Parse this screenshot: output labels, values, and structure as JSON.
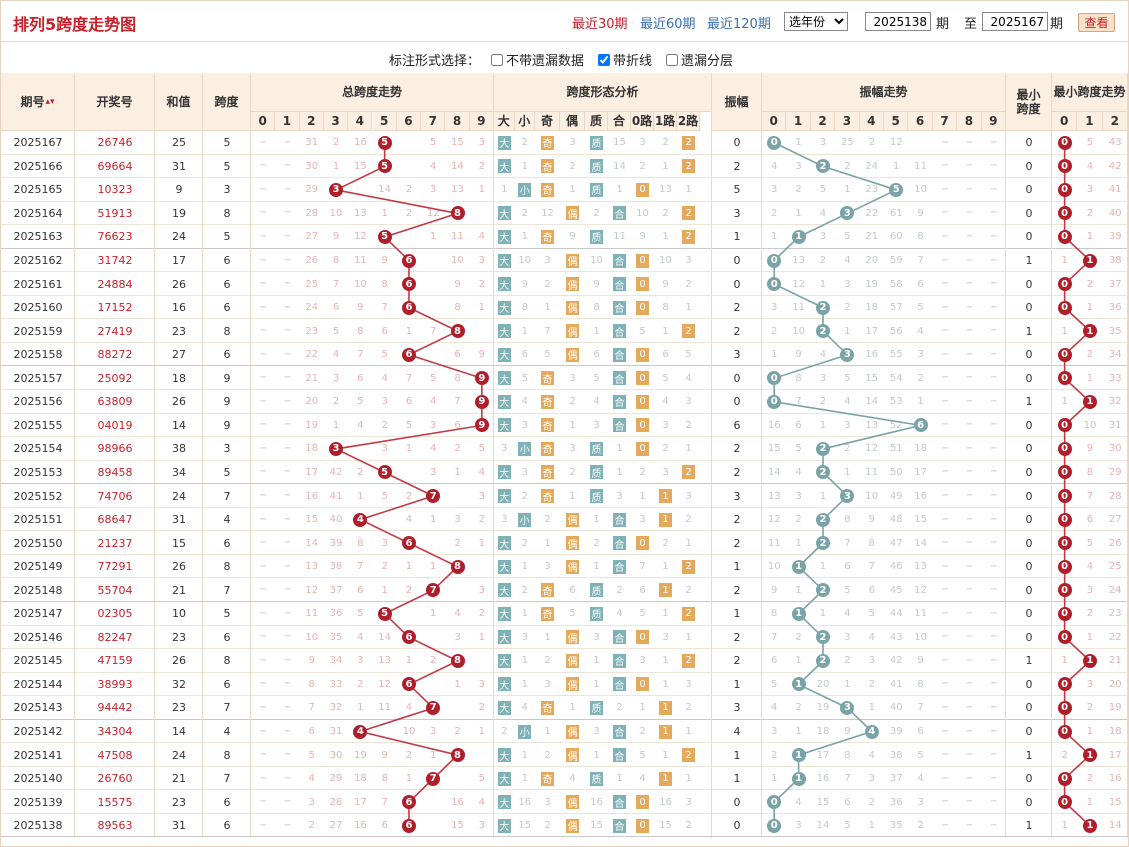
{
  "title": "排列5跨度走势图",
  "periods": [
    "最近30期",
    "最近60期",
    "最近120期"
  ],
  "year_select": "选年份",
  "range": {
    "from": "2025138",
    "to": "2025167",
    "unit": "期",
    "between": "至",
    "button": "查看"
  },
  "options": {
    "label": "标注形式选择：",
    "items": [
      {
        "label": "不带遗漏数据",
        "checked": false
      },
      {
        "label": "带折线",
        "checked": true
      },
      {
        "label": "遗漏分层",
        "checked": false
      }
    ]
  },
  "headers": {
    "issue": "期号",
    "draw": "开奖号",
    "sum": "和值",
    "span": "跨度",
    "span_trend": "总跨度走势",
    "shape": "跨度形态分析",
    "amp": "振幅",
    "amp_trend": "振幅走势",
    "min_span": "最小跨度",
    "min_trend": "最小跨度走势",
    "digits": [
      "0",
      "1",
      "2",
      "3",
      "4",
      "5",
      "6",
      "7",
      "8",
      "9"
    ],
    "shape_cols": [
      "大",
      "小",
      "奇",
      "偶",
      "质",
      "合",
      "0路",
      "1路",
      "2路"
    ],
    "min_digits": [
      "0",
      "1",
      "2"
    ]
  },
  "rows": [
    {
      "issue": "2025167",
      "draw": "26746",
      "sum": "25",
      "span": "5",
      "sm": [
        "31",
        "2",
        "16",
        "",
        "5",
        "15",
        "3",
        "10"
      ],
      "big": true,
      "odd": true,
      "prime": true,
      "road": "2",
      "ro": [
        "3",
        "2",
        "15"
      ],
      "amp": "0",
      "am": [
        "4",
        "1",
        "3",
        "25",
        "2",
        "12",
        "",
        "",
        ""
      ],
      "min": "0",
      "mm": [
        "5",
        "43"
      ]
    },
    {
      "issue": "2025166",
      "draw": "69664",
      "sum": "31",
      "span": "5",
      "sm": [
        "30",
        "1",
        "15",
        "",
        "4",
        "14",
        "2",
        "9"
      ],
      "big": true,
      "odd": true,
      "prime": true,
      "road": "2",
      "ro": [
        "2",
        "1",
        "14"
      ],
      "amp": "2",
      "am": [
        "4",
        "3",
        "",
        "2",
        "24",
        "1",
        "11",
        "",
        ""
      ],
      "min": "0",
      "mm": [
        "4",
        "42"
      ]
    },
    {
      "issue": "2025165",
      "draw": "10323",
      "sum": "9",
      "span": "3",
      "sm": [
        "29",
        "",
        "14",
        "2",
        "3",
        "13",
        "1",
        "8"
      ],
      "big": false,
      "odd": true,
      "prime": true,
      "road": "0",
      "ro": [
        "1",
        "13",
        "1"
      ],
      "amp": "5",
      "am": [
        "3",
        "2",
        "5",
        "1",
        "23",
        "",
        "10",
        "",
        ""
      ],
      "min": "0",
      "mm": [
        "3",
        "41"
      ]
    },
    {
      "issue": "2025164",
      "draw": "51913",
      "sum": "19",
      "span": "8",
      "sm": [
        "28",
        "10",
        "13",
        "1",
        "2",
        "12",
        "",
        "7"
      ],
      "big": true,
      "odd": false,
      "prime": false,
      "road": "2",
      "ro": [
        "10",
        "2",
        "12"
      ],
      "amp": "3",
      "am": [
        "2",
        "1",
        "4",
        "",
        "22",
        "61",
        "9",
        "",
        ""
      ],
      "min": "0",
      "mm": [
        "2",
        "40"
      ]
    },
    {
      "issue": "2025163",
      "draw": "76623",
      "sum": "24",
      "span": "5",
      "sm": [
        "27",
        "9",
        "12",
        "",
        "1",
        "11",
        "4",
        "6"
      ],
      "big": true,
      "odd": true,
      "prime": true,
      "road": "2",
      "ro": [
        "9",
        "1",
        "11"
      ],
      "amp": "1",
      "am": [
        "1",
        "",
        "3",
        "5",
        "21",
        "60",
        "8",
        "",
        ""
      ],
      "min": "0",
      "mm": [
        "1",
        "39"
      ]
    },
    {
      "issue": "2025162",
      "draw": "31742",
      "sum": "17",
      "span": "6",
      "sm": [
        "26",
        "8",
        "11",
        "9",
        "",
        "10",
        "3",
        "5"
      ],
      "big": true,
      "odd": false,
      "prime": false,
      "road": "0",
      "ro": [
        "8",
        "10",
        "3"
      ],
      "amp": "0",
      "am": [
        "",
        "13",
        "2",
        "4",
        "20",
        "59",
        "7",
        "",
        ""
      ],
      "min": "1",
      "mm": [
        "1",
        "38"
      ]
    },
    {
      "issue": "2025161",
      "draw": "24884",
      "sum": "26",
      "span": "6",
      "sm": [
        "25",
        "7",
        "10",
        "8",
        "",
        "9",
        "2",
        "4"
      ],
      "big": true,
      "odd": false,
      "prime": false,
      "road": "0",
      "ro": [
        "7",
        "9",
        "2"
      ],
      "amp": "0",
      "am": [
        "",
        "12",
        "1",
        "3",
        "19",
        "58",
        "6",
        "",
        ""
      ],
      "min": "0",
      "mm": [
        "2",
        "37"
      ]
    },
    {
      "issue": "2025160",
      "draw": "17152",
      "sum": "16",
      "span": "6",
      "sm": [
        "24",
        "6",
        "9",
        "7",
        "",
        "8",
        "1",
        "3"
      ],
      "big": true,
      "odd": false,
      "prime": false,
      "road": "0",
      "ro": [
        "6",
        "8",
        "1"
      ],
      "amp": "2",
      "am": [
        "3",
        "11",
        "",
        "2",
        "18",
        "57",
        "5",
        "",
        ""
      ],
      "min": "0",
      "mm": [
        "1",
        "36"
      ]
    },
    {
      "issue": "2025159",
      "draw": "27419",
      "sum": "23",
      "span": "8",
      "sm": [
        "23",
        "5",
        "8",
        "6",
        "1",
        "7",
        "",
        "2"
      ],
      "big": true,
      "odd": false,
      "prime": false,
      "road": "2",
      "ro": [
        "5",
        "1",
        "7"
      ],
      "amp": "2",
      "am": [
        "2",
        "10",
        "",
        "1",
        "17",
        "56",
        "4",
        "",
        ""
      ],
      "min": "1",
      "mm": [
        "1",
        "35"
      ]
    },
    {
      "issue": "2025158",
      "draw": "88272",
      "sum": "27",
      "span": "6",
      "sm": [
        "22",
        "4",
        "7",
        "5",
        "",
        "6",
        "9",
        "1"
      ],
      "big": true,
      "odd": false,
      "prime": false,
      "road": "0",
      "ro": [
        "4",
        "6",
        "5"
      ],
      "amp": "3",
      "am": [
        "1",
        "9",
        "4",
        "",
        "16",
        "55",
        "3",
        "",
        ""
      ],
      "min": "0",
      "mm": [
        "2",
        "34"
      ]
    },
    {
      "issue": "2025157",
      "draw": "25092",
      "sum": "18",
      "span": "9",
      "sm": [
        "21",
        "3",
        "6",
        "4",
        "7",
        "5",
        "8",
        ""
      ],
      "big": true,
      "odd": true,
      "prime": false,
      "road": "0",
      "ro": [
        "3",
        "5",
        "4"
      ],
      "amp": "0",
      "am": [
        "",
        "8",
        "3",
        "5",
        "15",
        "54",
        "2",
        "",
        ""
      ],
      "min": "0",
      "mm": [
        "1",
        "33"
      ]
    },
    {
      "issue": "2025156",
      "draw": "63809",
      "sum": "26",
      "span": "9",
      "sm": [
        "20",
        "2",
        "5",
        "3",
        "6",
        "4",
        "7",
        ""
      ],
      "big": true,
      "odd": true,
      "prime": false,
      "road": "0",
      "ro": [
        "2",
        "4",
        "3"
      ],
      "amp": "0",
      "am": [
        "",
        "7",
        "2",
        "4",
        "14",
        "53",
        "1",
        "",
        ""
      ],
      "min": "1",
      "mm": [
        "1",
        "32"
      ]
    },
    {
      "issue": "2025155",
      "draw": "04019",
      "sum": "14",
      "span": "9",
      "sm": [
        "19",
        "1",
        "4",
        "2",
        "5",
        "3",
        "6",
        ""
      ],
      "big": true,
      "odd": true,
      "prime": false,
      "road": "0",
      "ro": [
        "1",
        "3",
        "2"
      ],
      "amp": "6",
      "am": [
        "16",
        "6",
        "1",
        "3",
        "13",
        "52",
        "",
        "",
        ""
      ],
      "min": "0",
      "mm": [
        "10",
        "31"
      ]
    },
    {
      "issue": "2025154",
      "draw": "98966",
      "sum": "38",
      "span": "3",
      "sm": [
        "18",
        "",
        "3",
        "1",
        "4",
        "2",
        "5",
        "20"
      ],
      "big": false,
      "odd": true,
      "prime": true,
      "road": "0",
      "ro": [
        "3",
        "2",
        "1"
      ],
      "amp": "2",
      "am": [
        "15",
        "5",
        "",
        "2",
        "12",
        "51",
        "18",
        "",
        ""
      ],
      "min": "0",
      "mm": [
        "9",
        "30"
      ]
    },
    {
      "issue": "2025153",
      "draw": "89458",
      "sum": "34",
      "span": "5",
      "sm": [
        "17",
        "42",
        "2",
        "",
        "3",
        "1",
        "4",
        "19"
      ],
      "big": true,
      "odd": true,
      "prime": true,
      "road": "2",
      "ro": [
        "2",
        "3",
        "1"
      ],
      "amp": "2",
      "am": [
        "14",
        "4",
        "",
        "1",
        "11",
        "50",
        "17",
        "",
        ""
      ],
      "min": "0",
      "mm": [
        "8",
        "29"
      ]
    },
    {
      "issue": "2025152",
      "draw": "74706",
      "sum": "24",
      "span": "7",
      "sm": [
        "16",
        "41",
        "1",
        "5",
        "2",
        "",
        "3",
        "18"
      ],
      "big": true,
      "odd": true,
      "prime": true,
      "road": "1",
      "ro": [
        "1",
        "2",
        "3"
      ],
      "amp": "3",
      "am": [
        "13",
        "3",
        "1",
        "",
        "10",
        "49",
        "16",
        "",
        ""
      ],
      "min": "0",
      "mm": [
        "7",
        "28"
      ]
    },
    {
      "issue": "2025151",
      "draw": "68647",
      "sum": "31",
      "span": "4",
      "sm": [
        "15",
        "40",
        "",
        "4",
        "1",
        "3",
        "2",
        "17"
      ],
      "big": false,
      "odd": false,
      "prime": false,
      "road": "1",
      "ro": [
        "3",
        "1",
        "2"
      ],
      "amp": "2",
      "am": [
        "12",
        "2",
        "",
        "8",
        "9",
        "48",
        "15",
        "",
        ""
      ],
      "min": "0",
      "mm": [
        "6",
        "27"
      ]
    },
    {
      "issue": "2025150",
      "draw": "21237",
      "sum": "15",
      "span": "6",
      "sm": [
        "14",
        "39",
        "8",
        "3",
        "",
        "2",
        "1",
        "16"
      ],
      "big": true,
      "odd": false,
      "prime": false,
      "road": "0",
      "ro": [
        "8",
        "2",
        "1"
      ],
      "amp": "2",
      "am": [
        "11",
        "1",
        "",
        "7",
        "8",
        "47",
        "14",
        "",
        ""
      ],
      "min": "0",
      "mm": [
        "5",
        "26"
      ]
    },
    {
      "issue": "2025149",
      "draw": "77291",
      "sum": "26",
      "span": "8",
      "sm": [
        "13",
        "38",
        "7",
        "2",
        "1",
        "1",
        "",
        "15"
      ],
      "big": true,
      "odd": false,
      "prime": false,
      "road": "2",
      "ro": [
        "7",
        "1",
        "3"
      ],
      "amp": "1",
      "am": [
        "10",
        "",
        "1",
        "6",
        "7",
        "46",
        "13",
        "",
        ""
      ],
      "min": "0",
      "mm": [
        "4",
        "25"
      ]
    },
    {
      "issue": "2025148",
      "draw": "55704",
      "sum": "21",
      "span": "7",
      "sm": [
        "12",
        "37",
        "6",
        "1",
        "2",
        "",
        "3",
        "14"
      ],
      "big": true,
      "odd": true,
      "prime": true,
      "road": "1",
      "ro": [
        "6",
        "2",
        "2"
      ],
      "amp": "2",
      "am": [
        "9",
        "1",
        "",
        "5",
        "6",
        "45",
        "12",
        "",
        ""
      ],
      "min": "0",
      "mm": [
        "3",
        "24"
      ]
    },
    {
      "issue": "2025147",
      "draw": "02305",
      "sum": "10",
      "span": "5",
      "sm": [
        "11",
        "36",
        "5",
        "",
        "1",
        "4",
        "2",
        "13"
      ],
      "big": true,
      "odd": true,
      "prime": true,
      "road": "2",
      "ro": [
        "5",
        "1",
        "4"
      ],
      "amp": "1",
      "am": [
        "8",
        "",
        "1",
        "4",
        "5",
        "44",
        "11",
        "",
        ""
      ],
      "min": "0",
      "mm": [
        "2",
        "23"
      ]
    },
    {
      "issue": "2025146",
      "draw": "82247",
      "sum": "23",
      "span": "6",
      "sm": [
        "10",
        "35",
        "4",
        "14",
        "",
        "3",
        "1",
        "12"
      ],
      "big": true,
      "odd": false,
      "prime": false,
      "road": "0",
      "ro": [
        "4",
        "3",
        "1"
      ],
      "amp": "2",
      "am": [
        "7",
        "2",
        "",
        "3",
        "4",
        "43",
        "10",
        "",
        ""
      ],
      "min": "0",
      "mm": [
        "1",
        "22"
      ]
    },
    {
      "issue": "2025145",
      "draw": "47159",
      "sum": "26",
      "span": "8",
      "sm": [
        "9",
        "34",
        "3",
        "13",
        "1",
        "2",
        "",
        "11"
      ],
      "big": true,
      "odd": false,
      "prime": false,
      "road": "2",
      "ro": [
        "3",
        "1",
        "2"
      ],
      "amp": "2",
      "am": [
        "6",
        "1",
        "",
        "2",
        "3",
        "42",
        "9",
        "",
        ""
      ],
      "min": "1",
      "mm": [
        "1",
        "21"
      ]
    },
    {
      "issue": "2025144",
      "draw": "38993",
      "sum": "32",
      "span": "6",
      "sm": [
        "8",
        "33",
        "2",
        "12",
        "",
        "1",
        "3",
        "10"
      ],
      "big": true,
      "odd": false,
      "prime": false,
      "road": "0",
      "ro": [
        "2",
        "1",
        "3"
      ],
      "amp": "1",
      "am": [
        "5",
        "",
        "20",
        "1",
        "2",
        "41",
        "8",
        "",
        ""
      ],
      "min": "0",
      "mm": [
        "3",
        "20"
      ]
    },
    {
      "issue": "2025143",
      "draw": "94442",
      "sum": "23",
      "span": "7",
      "sm": [
        "7",
        "32",
        "1",
        "11",
        "4",
        "",
        "2",
        "9"
      ],
      "big": true,
      "odd": true,
      "prime": true,
      "road": "1",
      "ro": [
        "1",
        "4",
        "2"
      ],
      "amp": "3",
      "am": [
        "4",
        "2",
        "19",
        "",
        "1",
        "40",
        "7",
        "",
        ""
      ],
      "min": "0",
      "mm": [
        "2",
        "19"
      ]
    },
    {
      "issue": "2025142",
      "draw": "34304",
      "sum": "14",
      "span": "4",
      "sm": [
        "6",
        "31",
        "",
        "10",
        "3",
        "2",
        "1",
        "8"
      ],
      "big": false,
      "odd": false,
      "prime": false,
      "road": "1",
      "ro": [
        "2",
        "3",
        "1"
      ],
      "amp": "4",
      "am": [
        "3",
        "1",
        "18",
        "9",
        "",
        "39",
        "6",
        "",
        ""
      ],
      "min": "0",
      "mm": [
        "1",
        "18"
      ]
    },
    {
      "issue": "2025141",
      "draw": "47508",
      "sum": "24",
      "span": "8",
      "sm": [
        "5",
        "30",
        "19",
        "9",
        "2",
        "1",
        "",
        "7"
      ],
      "big": true,
      "odd": false,
      "prime": false,
      "road": "2",
      "ro": [
        "5",
        "1",
        "2"
      ],
      "amp": "1",
      "am": [
        "2",
        "",
        "17",
        "8",
        "4",
        "38",
        "5",
        "",
        ""
      ],
      "min": "1",
      "mm": [
        "2",
        "17"
      ]
    },
    {
      "issue": "2025140",
      "draw": "26760",
      "sum": "21",
      "span": "7",
      "sm": [
        "4",
        "29",
        "18",
        "8",
        "1",
        "",
        "5",
        "6"
      ],
      "big": true,
      "odd": true,
      "prime": true,
      "road": "1",
      "ro": [
        "4",
        "1",
        "1"
      ],
      "amp": "1",
      "am": [
        "1",
        "",
        "16",
        "7",
        "3",
        "37",
        "4",
        "",
        ""
      ],
      "min": "0",
      "mm": [
        "2",
        "16"
      ]
    },
    {
      "issue": "2025139",
      "draw": "15575",
      "sum": "23",
      "span": "6",
      "sm": [
        "3",
        "28",
        "17",
        "7",
        "",
        "16",
        "4",
        "5"
      ],
      "big": true,
      "odd": false,
      "prime": false,
      "road": "0",
      "ro": [
        "3",
        "16",
        "3"
      ],
      "amp": "0",
      "am": [
        "",
        "4",
        "15",
        "6",
        "2",
        "36",
        "3",
        "",
        ""
      ],
      "min": "0",
      "mm": [
        "1",
        "15"
      ]
    },
    {
      "issue": "2025138",
      "draw": "89563",
      "sum": "31",
      "span": "6",
      "sm": [
        "2",
        "27",
        "16",
        "6",
        "",
        "15",
        "3",
        "4"
      ],
      "big": true,
      "odd": false,
      "prime": false,
      "road": "0",
      "ro": [
        "2",
        "15",
        "2"
      ],
      "amp": "0",
      "am": [
        "",
        "3",
        "14",
        "5",
        "1",
        "35",
        "2",
        "",
        ""
      ],
      "min": "1",
      "mm": [
        "1",
        "14"
      ]
    }
  ],
  "colors": {
    "red": "#b01e2a",
    "teal": "#7aa3a8",
    "header_bg": "#fbefe2",
    "tag_teal": "#7fb2b6",
    "tag_orange": "#e4a95b"
  },
  "icons": {
    "sort": "sort-icon"
  }
}
